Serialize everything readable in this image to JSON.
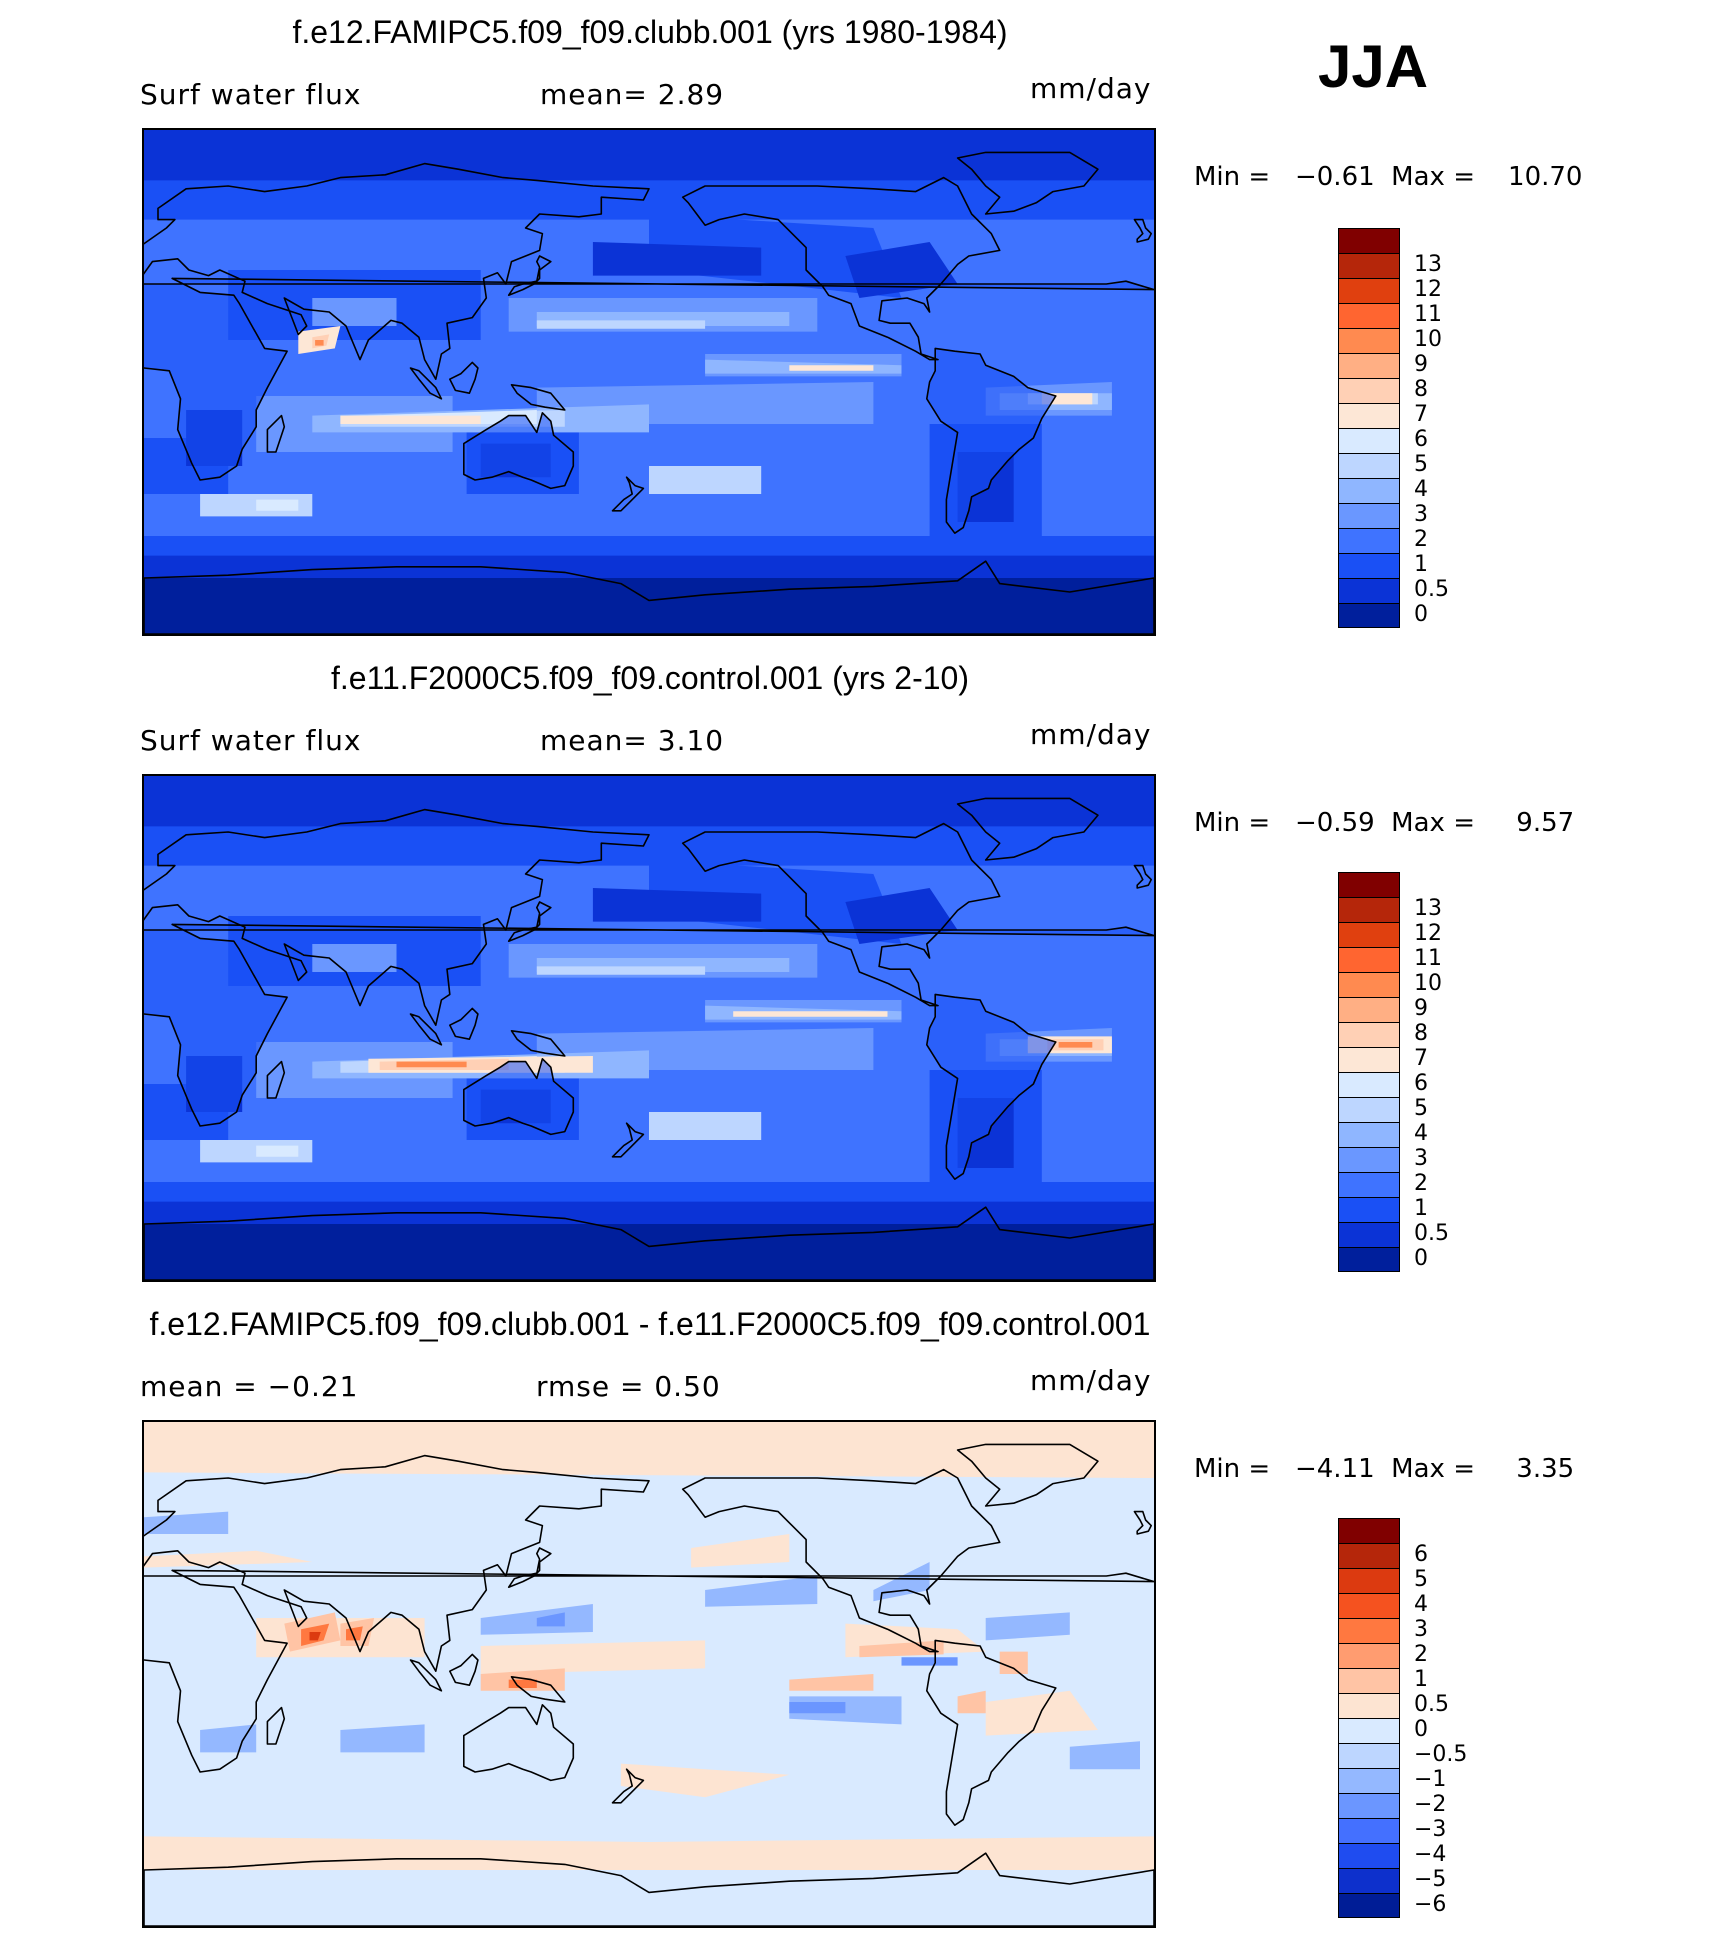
{
  "season": "JJA",
  "panels": [
    {
      "title": "f.e12.FAMIPC5.f09_f09.clubb.001 (yrs 1980-1984)",
      "left_label": "Surf water flux",
      "middle_label": "mean=    2.89",
      "units": "mm/day",
      "minmax": "Min =   −0.61  Max =    10.70",
      "field": "precip",
      "colorbar": {
        "colors": [
          "#800000",
          "#b5260a",
          "#e0400f",
          "#ff6530",
          "#ff8a50",
          "#ffaf84",
          "#ffd0b5",
          "#fde7d6",
          "#d9eaff",
          "#bdd6ff",
          "#8fb6ff",
          "#6a97ff",
          "#3f73ff",
          "#1a50f5",
          "#0b33d6",
          "#001f9c"
        ],
        "ticks": [
          "13",
          "12",
          "11",
          "10",
          "9",
          "8",
          "7",
          "6",
          "5",
          "4",
          "3",
          "2",
          "1",
          "0.5",
          "0"
        ]
      }
    },
    {
      "title": "f.e11.F2000C5.f09_f09.control.001 (yrs 2-10)",
      "left_label": "Surf water flux",
      "middle_label": "mean=    3.10",
      "units": "mm/day",
      "minmax": "Min =   −0.59  Max =     9.57",
      "field": "precip",
      "colorbar": {
        "colors": [
          "#800000",
          "#b5260a",
          "#e0400f",
          "#ff6530",
          "#ff8a50",
          "#ffaf84",
          "#ffd0b5",
          "#fde7d6",
          "#d9eaff",
          "#bdd6ff",
          "#8fb6ff",
          "#6a97ff",
          "#3f73ff",
          "#1a50f5",
          "#0b33d6",
          "#001f9c"
        ],
        "ticks": [
          "13",
          "12",
          "11",
          "10",
          "9",
          "8",
          "7",
          "6",
          "5",
          "4",
          "3",
          "2",
          "1",
          "0.5",
          "0"
        ]
      }
    },
    {
      "title": "f.e12.FAMIPC5.f09_f09.clubb.001 - f.e11.F2000C5.f09_f09.control.001",
      "left_label": "mean =   −0.21",
      "middle_label": "rmse =    0.50",
      "units": "mm/day",
      "minmax": "Min =   −4.11  Max =     3.35",
      "field": "diff",
      "colorbar": {
        "colors": [
          "#800000",
          "#b5260a",
          "#dc3a10",
          "#f5521f",
          "#ff7840",
          "#ff9c70",
          "#ffc4a5",
          "#fde4d2",
          "#d9eaff",
          "#bdd6ff",
          "#94b8ff",
          "#6b96ff",
          "#4470ff",
          "#1f4cf0",
          "#0d30cc",
          "#001d96"
        ],
        "ticks": [
          "6",
          "5",
          "4",
          "3",
          "2",
          "1",
          "0.5",
          "0",
          "−0.5",
          "−1",
          "−2",
          "−3",
          "−4",
          "−5",
          "−6"
        ]
      }
    }
  ]
}
